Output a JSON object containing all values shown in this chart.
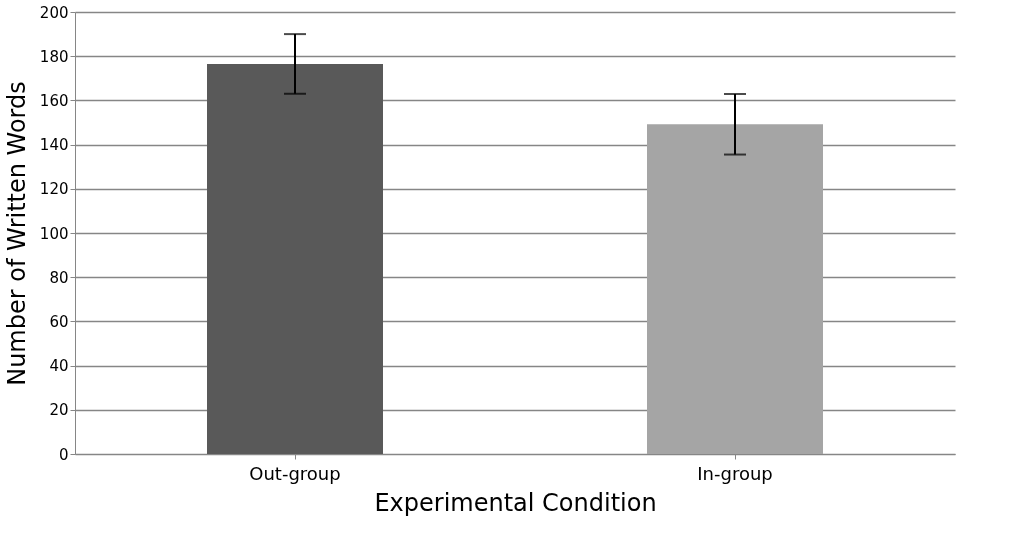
{
  "chart_data": {
    "type": "bar",
    "xlabel": "Experimental Condition",
    "ylabel": "Number of Written Words",
    "categories": [
      "Out-group",
      "In-group"
    ],
    "values": [
      176.5,
      149.2
    ],
    "colors": [
      "#595959",
      "#a5a5a5"
    ],
    "errors": [
      13.5,
      13.7
    ],
    "ylim": [
      0,
      200
    ],
    "yticks": [
      0,
      20,
      40,
      60,
      80,
      100,
      120,
      140,
      160,
      180,
      200
    ],
    "grid": "y"
  }
}
